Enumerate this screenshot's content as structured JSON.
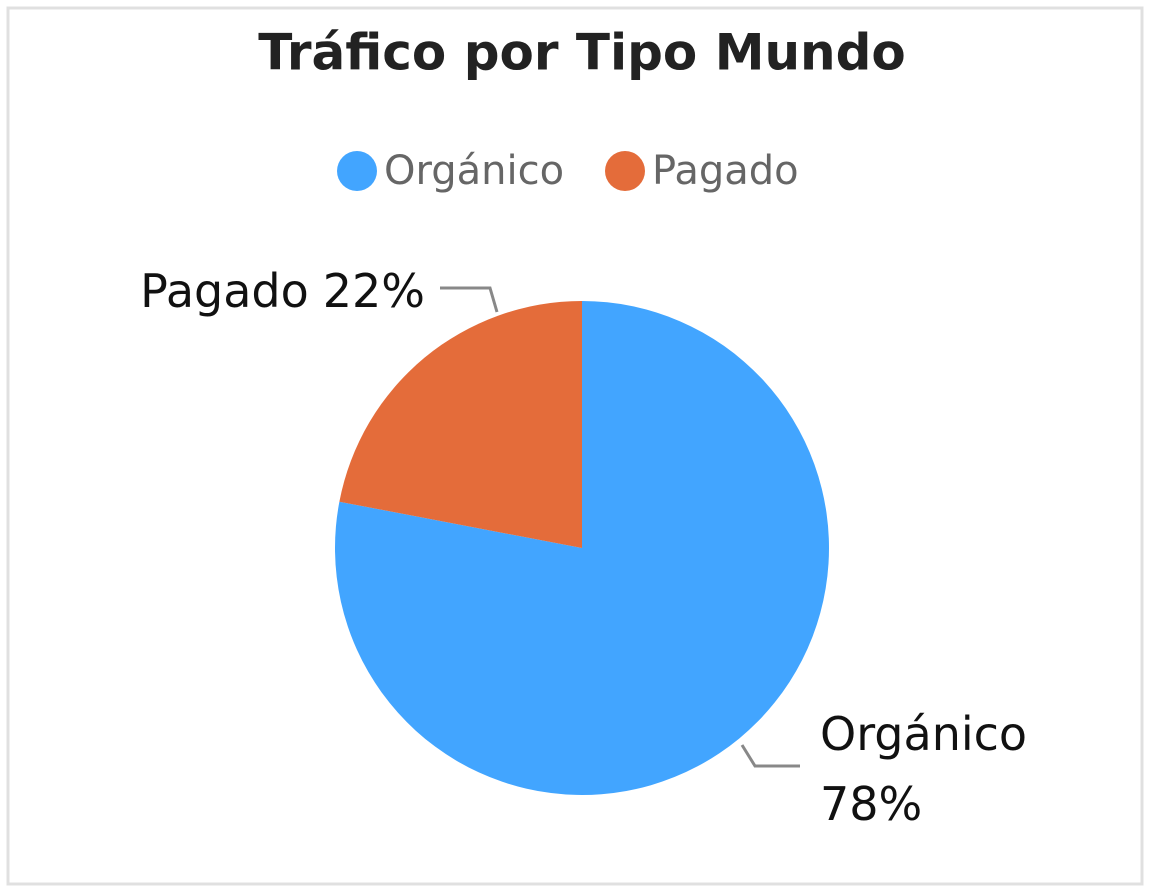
{
  "chart_data": {
    "type": "pie",
    "title": "Tráfico por Tipo Mundo",
    "categories": [
      "Orgánico",
      "Pagado"
    ],
    "values": [
      78,
      22
    ],
    "value_labels": [
      "78%",
      "22%"
    ],
    "colors": [
      "#42a5ff",
      "#e46c3a"
    ],
    "legend": "top"
  }
}
